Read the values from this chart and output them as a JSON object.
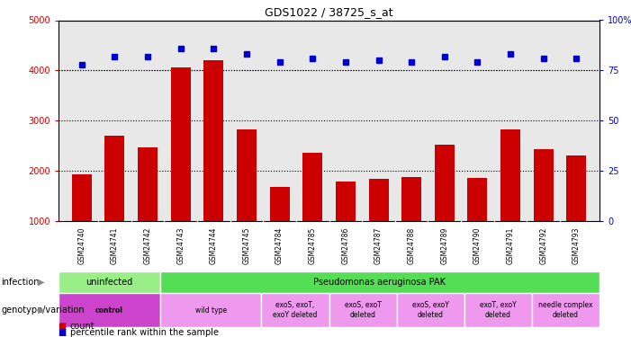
{
  "title": "GDS1022 / 38725_s_at",
  "samples": [
    "GSM24740",
    "GSM24741",
    "GSM24742",
    "GSM24743",
    "GSM24744",
    "GSM24745",
    "GSM24784",
    "GSM24785",
    "GSM24786",
    "GSM24787",
    "GSM24788",
    "GSM24789",
    "GSM24790",
    "GSM24791",
    "GSM24792",
    "GSM24793"
  ],
  "counts": [
    1920,
    2700,
    2470,
    4060,
    4200,
    2830,
    1680,
    2350,
    1790,
    1830,
    1870,
    2510,
    1850,
    2830,
    2430,
    2300
  ],
  "percentile_ranks": [
    78,
    82,
    82,
    86,
    86,
    83,
    79,
    81,
    79,
    80,
    79,
    82,
    79,
    83,
    81,
    81
  ],
  "bar_color": "#cc0000",
  "dot_color": "#0000cc",
  "plot_bg_color": "#e8e8e8",
  "ylim_left": [
    1000,
    5000
  ],
  "ylim_right": [
    0,
    100
  ],
  "yticks_left": [
    1000,
    2000,
    3000,
    4000,
    5000
  ],
  "yticks_right": [
    0,
    25,
    50,
    75,
    100
  ],
  "grid_values": [
    2000,
    3000,
    4000
  ],
  "infection_row": {
    "groups": [
      {
        "label": "uninfected",
        "start": 0,
        "end": 3,
        "color": "#99ee88"
      },
      {
        "label": "Pseudomonas aeruginosa PAK",
        "start": 3,
        "end": 16,
        "color": "#55dd55"
      }
    ]
  },
  "genotype_row": {
    "groups": [
      {
        "label": "control",
        "start": 0,
        "end": 3,
        "color": "#cc44cc",
        "bold": true
      },
      {
        "label": "wild type",
        "start": 3,
        "end": 6,
        "color": "#ee99ee",
        "bold": false
      },
      {
        "label": "exoS, exoT,\nexoY deleted",
        "start": 6,
        "end": 8,
        "color": "#ee99ee",
        "bold": false
      },
      {
        "label": "exoS, exoT\ndeleted",
        "start": 8,
        "end": 10,
        "color": "#ee99ee",
        "bold": false
      },
      {
        "label": "exoS, exoY\ndeleted",
        "start": 10,
        "end": 12,
        "color": "#ee99ee",
        "bold": false
      },
      {
        "label": "exoT, exoY\ndeleted",
        "start": 12,
        "end": 14,
        "color": "#ee99ee",
        "bold": false
      },
      {
        "label": "needle complex\ndeleted",
        "start": 14,
        "end": 16,
        "color": "#ee99ee",
        "bold": false
      }
    ]
  },
  "infection_label": "infection",
  "genotype_label": "genotype/variation",
  "legend_count_color": "#cc0000",
  "legend_dot_color": "#0000cc",
  "legend_count_label": "count",
  "legend_dot_label": "percentile rank within the sample"
}
